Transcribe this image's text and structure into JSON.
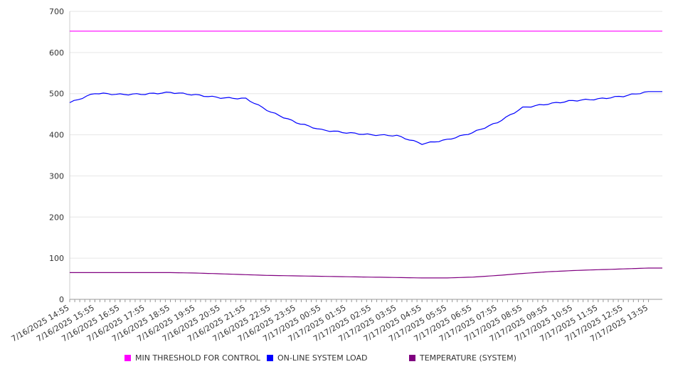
{
  "chart_data": {
    "type": "line",
    "title": "",
    "xlabel": "",
    "ylabel": "",
    "ylim": [
      0,
      700
    ],
    "yticks": [
      0,
      100,
      200,
      300,
      400,
      500,
      600,
      700
    ],
    "grid": true,
    "legend_position": "bottom",
    "x": [
      "7/16/2025 14:55",
      "7/16/2025 15:55",
      "7/16/2025 16:55",
      "7/16/2025 17:55",
      "7/16/2025 18:55",
      "7/16/2025 19:55",
      "7/16/2025 20:55",
      "7/16/2025 21:55",
      "7/16/2025 22:55",
      "7/16/2025 23:55",
      "7/17/2025 00:55",
      "7/17/2025 01:55",
      "7/17/2025 02:55",
      "7/17/2025 03:55",
      "7/17/2025 04:55",
      "7/17/2025 05:55",
      "7/17/2025 06:55",
      "7/17/2025 07:55",
      "7/17/2025 08:55",
      "7/17/2025 09:55",
      "7/17/2025 10:55",
      "7/17/2025 11:55",
      "7/17/2025 12:55",
      "7/17/2025 13:55"
    ],
    "series": [
      {
        "name": "MIN THRESHOLD FOR CONTROL",
        "color": "#ff00ff",
        "values": [
          652,
          652,
          652,
          652,
          652,
          652,
          652,
          652,
          652,
          652,
          652,
          652,
          652,
          652,
          652,
          652,
          652,
          652,
          652,
          652,
          652,
          652,
          652,
          652
        ]
      },
      {
        "name": "ON-LINE SYSTEM LOAD",
        "color": "#0000ff",
        "values": [
          478,
          501,
          498,
          499,
          503,
          497,
          490,
          488,
          455,
          430,
          412,
          405,
          400,
          398,
          378,
          388,
          405,
          430,
          466,
          475,
          483,
          487,
          494,
          505
        ]
      },
      {
        "name": "TEMPERATURE (SYSTEM)",
        "color": "#800080",
        "values": [
          65,
          65,
          65,
          65,
          65,
          64,
          62,
          60,
          58,
          57,
          56,
          55,
          54,
          53,
          52,
          52,
          54,
          58,
          63,
          67,
          70,
          72,
          74,
          76
        ]
      }
    ]
  }
}
